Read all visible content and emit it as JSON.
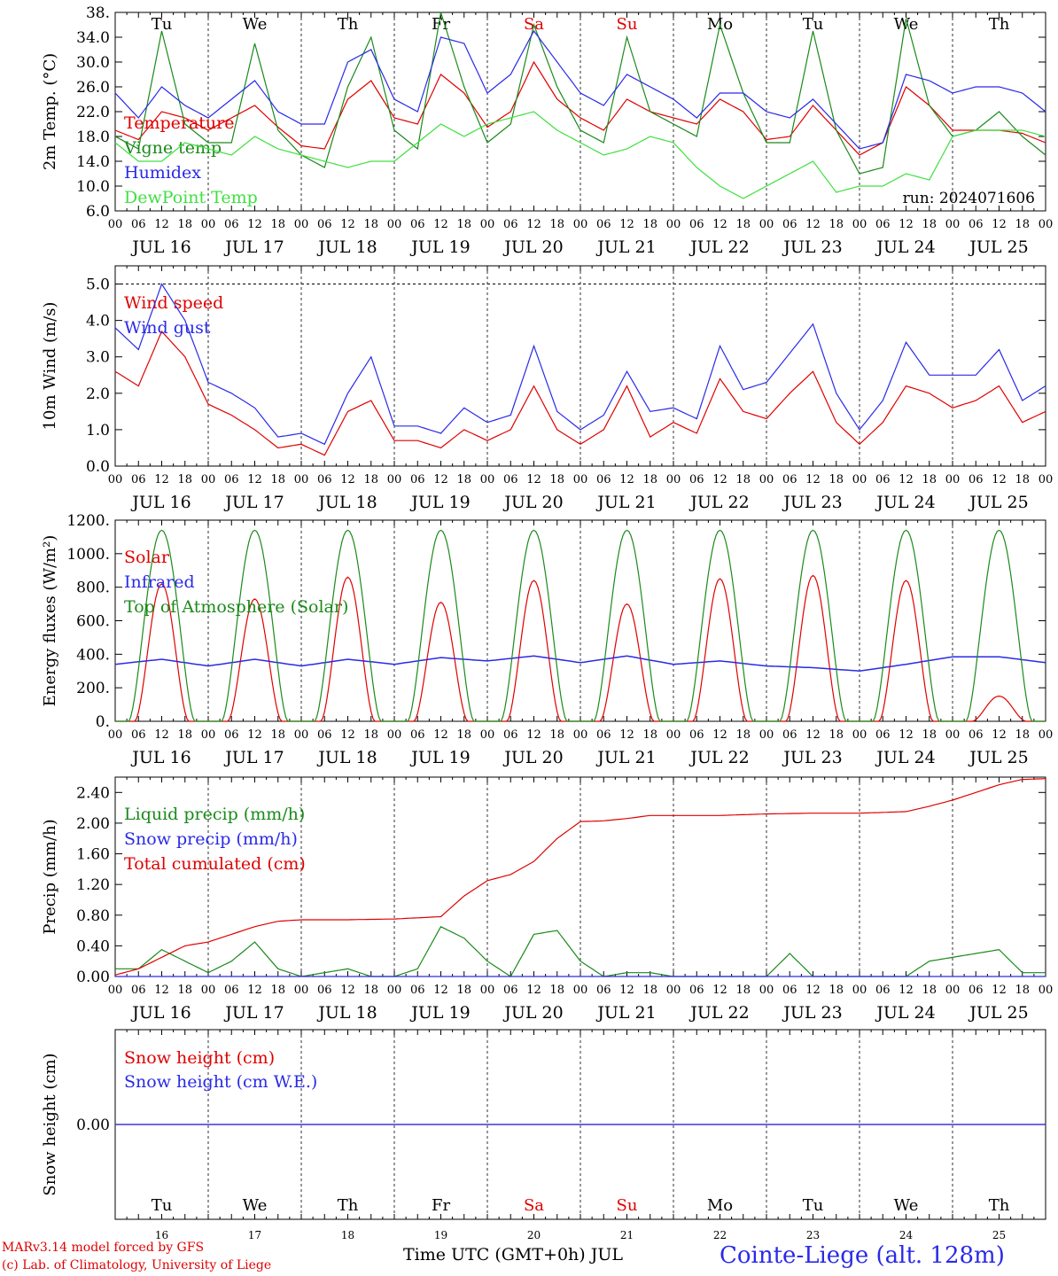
{
  "run_label": "run: 2024071606",
  "time_label": "Time UTC (GMT+0h) JUL",
  "station_label": "Cointe-Liege (alt. 128m)",
  "model_label": "MARv3.14 model forced by GFS",
  "lab_label": "(c) Lab. of Climatology, University of Liege",
  "days": [
    "JUL 16",
    "JUL 17",
    "JUL 18",
    "JUL 19",
    "JUL 20",
    "JUL 21",
    "JUL 22",
    "JUL 23",
    "JUL 24",
    "JUL 25"
  ],
  "weekdays": [
    "Tu",
    "We",
    "Th",
    "Fr",
    "Sa",
    "Su",
    "Mo",
    "Tu",
    "We",
    "Th"
  ],
  "weekend_flags": [
    false,
    false,
    false,
    false,
    true,
    true,
    false,
    false,
    false,
    false
  ],
  "day_numbers": [
    "16",
    "17",
    "18",
    "19",
    "20",
    "21",
    "22",
    "23",
    "24",
    "25"
  ],
  "hour_ticks": [
    "00",
    "06",
    "12",
    "18"
  ],
  "colors": {
    "red": "#e00000",
    "blue": "#2a2ae8",
    "green": "#1a8a1a",
    "lightgreen": "#40e040",
    "purple": "#8a2aaa"
  },
  "chart_data": [
    {
      "type": "line",
      "id": "temp",
      "ylabel": "2m Temp. (°C)",
      "x_unit": "hours since JUL 16 00 UTC",
      "ylim": [
        6,
        38
      ],
      "yticks": [
        "38.",
        "34.0",
        "30.0",
        "26.0",
        "22.0",
        "18.0",
        "14.0",
        "10.0",
        "6.0"
      ],
      "grid": "dashed-vertical-day",
      "legend_placement": "left",
      "series": [
        {
          "name": "Temperature",
          "color": "red",
          "x": [
            0,
            6,
            12,
            18,
            24,
            30,
            36,
            42,
            48,
            54,
            60,
            66,
            72,
            78,
            84,
            90,
            96,
            102,
            108,
            114,
            120,
            126,
            132,
            138,
            144,
            150,
            156,
            162,
            168,
            174,
            180,
            186,
            192,
            198,
            204,
            210,
            216,
            222,
            228,
            234,
            240
          ],
          "values": [
            19,
            17.5,
            22,
            21,
            19,
            21,
            23,
            19.5,
            16.5,
            16,
            24,
            27,
            21,
            20,
            28,
            25,
            19.5,
            22,
            30,
            24,
            21,
            19,
            24,
            22,
            21,
            20,
            24,
            22,
            17.5,
            18,
            23,
            19,
            15,
            17,
            26,
            23,
            19,
            19,
            19,
            18.5,
            17
          ]
        },
        {
          "name": "Vigne temp",
          "color": "green",
          "x": [
            0,
            6,
            12,
            18,
            24,
            30,
            36,
            42,
            48,
            54,
            60,
            66,
            72,
            78,
            84,
            90,
            96,
            102,
            108,
            114,
            120,
            126,
            132,
            138,
            144,
            150,
            156,
            162,
            168,
            174,
            180,
            186,
            192,
            198,
            204,
            210,
            216,
            222,
            228,
            234,
            240
          ],
          "values": [
            18,
            16,
            35,
            20,
            17,
            17,
            33,
            19,
            15,
            13,
            26,
            34,
            19,
            16,
            38,
            26,
            17,
            20,
            36,
            26,
            19,
            17,
            34,
            22,
            20,
            18,
            36,
            25,
            17,
            17,
            35,
            19,
            12,
            13,
            37,
            23,
            18,
            19,
            22,
            18,
            15
          ]
        },
        {
          "name": "Humidex",
          "color": "blue",
          "x": [
            0,
            6,
            12,
            18,
            24,
            30,
            36,
            42,
            48,
            54,
            60,
            66,
            72,
            78,
            84,
            90,
            96,
            102,
            108,
            114,
            120,
            126,
            132,
            138,
            144,
            150,
            156,
            162,
            168,
            174,
            180,
            186,
            192,
            198,
            204,
            210,
            216,
            222,
            228,
            234,
            240
          ],
          "values": [
            25,
            21,
            26,
            23,
            21,
            24,
            27,
            22,
            20,
            20,
            30,
            32,
            24,
            22,
            34,
            33,
            25,
            28,
            35,
            30,
            25,
            23,
            28,
            26,
            24,
            21,
            25,
            25,
            22,
            21,
            24,
            20,
            16,
            17,
            28,
            27,
            25,
            26,
            26,
            25,
            22
          ]
        },
        {
          "name": "DewPoint Temp",
          "color": "lightgreen",
          "x": [
            0,
            6,
            12,
            18,
            24,
            30,
            36,
            42,
            48,
            54,
            60,
            66,
            72,
            78,
            84,
            90,
            96,
            102,
            108,
            114,
            120,
            126,
            132,
            138,
            144,
            150,
            156,
            162,
            168,
            174,
            180,
            186,
            192,
            198,
            204,
            210,
            216,
            222,
            228,
            234,
            240
          ],
          "values": [
            17,
            14,
            14,
            17,
            16,
            15,
            18,
            16,
            15,
            14,
            13,
            14,
            14,
            17,
            20,
            18,
            20,
            21,
            22,
            19,
            17,
            15,
            16,
            18,
            17,
            13,
            10,
            8,
            10,
            12,
            14,
            9,
            10,
            10,
            12,
            11,
            18,
            19,
            19,
            19,
            18
          ]
        }
      ]
    },
    {
      "type": "line",
      "id": "wind",
      "ylabel": "10m Wind (m/s)",
      "x_unit": "hours since JUL 16 00 UTC",
      "ylim": [
        0,
        5.5
      ],
      "yticks": [
        "5.0",
        "4.0",
        "3.0",
        "2.0",
        "1.0",
        "0.0"
      ],
      "grid": "dashed-vertical-day",
      "legend_placement": "left",
      "series": [
        {
          "name": "Wind speed",
          "color": "red",
          "x": [
            0,
            6,
            12,
            18,
            24,
            30,
            36,
            42,
            48,
            54,
            60,
            66,
            72,
            78,
            84,
            90,
            96,
            102,
            108,
            114,
            120,
            126,
            132,
            138,
            144,
            150,
            156,
            162,
            168,
            174,
            180,
            186,
            192,
            198,
            204,
            210,
            216,
            222,
            228,
            234,
            240
          ],
          "values": [
            2.6,
            2.2,
            3.7,
            3.0,
            1.7,
            1.4,
            1.0,
            0.5,
            0.6,
            0.3,
            1.5,
            1.8,
            0.7,
            0.7,
            0.5,
            1.0,
            0.7,
            1.0,
            2.2,
            1.0,
            0.6,
            1.0,
            2.2,
            0.8,
            1.2,
            0.9,
            2.4,
            1.5,
            1.3,
            2.0,
            2.6,
            1.2,
            0.6,
            1.2,
            2.2,
            2.0,
            1.6,
            1.8,
            2.2,
            1.2,
            1.5
          ]
        },
        {
          "name": "Wind gust",
          "color": "blue",
          "x": [
            0,
            6,
            12,
            18,
            24,
            30,
            36,
            42,
            48,
            54,
            60,
            66,
            72,
            78,
            84,
            90,
            96,
            102,
            108,
            114,
            120,
            126,
            132,
            138,
            144,
            150,
            156,
            162,
            168,
            174,
            180,
            186,
            192,
            198,
            204,
            210,
            216,
            222,
            228,
            234,
            240
          ],
          "values": [
            3.8,
            3.2,
            5.0,
            4.0,
            2.3,
            2.0,
            1.6,
            0.8,
            0.9,
            0.6,
            2.0,
            3.0,
            1.1,
            1.1,
            0.9,
            1.6,
            1.2,
            1.4,
            3.3,
            1.5,
            1.0,
            1.4,
            2.6,
            1.5,
            1.6,
            1.3,
            3.3,
            2.1,
            2.3,
            3.1,
            3.9,
            2.0,
            1.0,
            1.8,
            3.4,
            2.5,
            2.5,
            2.5,
            3.2,
            1.8,
            2.2
          ]
        }
      ]
    },
    {
      "type": "line",
      "id": "energy",
      "ylabel": "Energy fluxes (W/m²)",
      "x_unit": "hours since JUL 16 00 UTC",
      "ylim": [
        0,
        1200
      ],
      "yticks": [
        "1200.",
        "1000.",
        "800.",
        "600.",
        "400.",
        "200.",
        "0."
      ],
      "grid": "dashed-vertical-day",
      "legend_placement": "left",
      "series": [
        {
          "name": "Solar",
          "color": "red",
          "peaks": [
            820,
            730,
            860,
            710,
            840,
            700,
            850,
            870,
            840,
            150
          ],
          "x": [],
          "values": []
        },
        {
          "name": "Infrared",
          "color": "blue",
          "x": [
            0,
            12,
            24,
            36,
            48,
            60,
            72,
            84,
            96,
            108,
            120,
            132,
            144,
            156,
            168,
            180,
            192,
            204,
            216,
            228,
            240
          ],
          "values": [
            340,
            370,
            330,
            370,
            330,
            370,
            340,
            380,
            360,
            390,
            350,
            390,
            340,
            360,
            330,
            320,
            300,
            340,
            385,
            385,
            350
          ]
        },
        {
          "name": "Top of Atmosphere (Solar)",
          "color": "green",
          "peak": 1140,
          "x": [],
          "values": []
        }
      ]
    },
    {
      "type": "line",
      "id": "precip",
      "ylabel": "Precip (mm/h)",
      "x_unit": "hours since JUL 16 00 UTC",
      "ylim": [
        0,
        2.6
      ],
      "yticks": [
        "2.40",
        "2.00",
        "1.60",
        "1.20",
        "0.80",
        "0.40",
        "0.00"
      ],
      "grid": "dashed-vertical-day",
      "legend_placement": "left",
      "series": [
        {
          "name": "Liquid precip (mm/h)",
          "color": "green",
          "x": [
            0,
            6,
            12,
            18,
            24,
            30,
            36,
            42,
            48,
            60,
            66,
            72,
            78,
            84,
            90,
            96,
            102,
            108,
            114,
            120,
            126,
            132,
            138,
            144,
            150,
            156,
            168,
            174,
            180,
            186,
            192,
            204,
            210,
            216,
            222,
            228,
            234,
            240
          ],
          "values": [
            0.1,
            0.1,
            0.35,
            0.2,
            0.05,
            0.2,
            0.45,
            0.1,
            0,
            0.1,
            0,
            0,
            0.1,
            0.65,
            0.5,
            0.2,
            0,
            0.55,
            0.6,
            0.2,
            0,
            0.05,
            0.05,
            0,
            0,
            0,
            0,
            0.3,
            0,
            0,
            0,
            0,
            0.2,
            0.25,
            0.3,
            0.35,
            0.05,
            0.05
          ]
        },
        {
          "name": "Snow precip (mm/h)",
          "color": "blue",
          "x": [
            0,
            240
          ],
          "values": [
            0,
            0
          ]
        },
        {
          "name": "Total cumulated (cm)",
          "color": "red",
          "x": [
            0,
            6,
            12,
            18,
            24,
            30,
            36,
            42,
            48,
            60,
            72,
            84,
            90,
            96,
            102,
            108,
            114,
            120,
            126,
            132,
            138,
            144,
            156,
            168,
            180,
            192,
            204,
            210,
            216,
            222,
            228,
            234,
            240
          ],
          "values": [
            0.02,
            0.1,
            0.25,
            0.4,
            0.45,
            0.55,
            0.65,
            0.72,
            0.74,
            0.74,
            0.75,
            0.78,
            1.05,
            1.25,
            1.33,
            1.5,
            1.8,
            2.02,
            2.03,
            2.06,
            2.1,
            2.1,
            2.1,
            2.12,
            2.13,
            2.13,
            2.15,
            2.22,
            2.3,
            2.4,
            2.5,
            2.57,
            2.58
          ]
        }
      ]
    },
    {
      "type": "line",
      "id": "snow",
      "ylabel": "Snow height (cm)",
      "x_unit": "hours since JUL 16 00 UTC",
      "ylim": [
        -1,
        1
      ],
      "yticks": [
        "0.00"
      ],
      "grid": "dashed-vertical-day",
      "legend_placement": "left",
      "series": [
        {
          "name": "Snow height (cm)",
          "color": "red",
          "x": [
            0,
            240
          ],
          "values": [
            0,
            0
          ]
        },
        {
          "name": "Snow height (cm W.E.)",
          "color": "blue",
          "x": [
            0,
            240
          ],
          "values": [
            0,
            0
          ]
        }
      ]
    }
  ]
}
